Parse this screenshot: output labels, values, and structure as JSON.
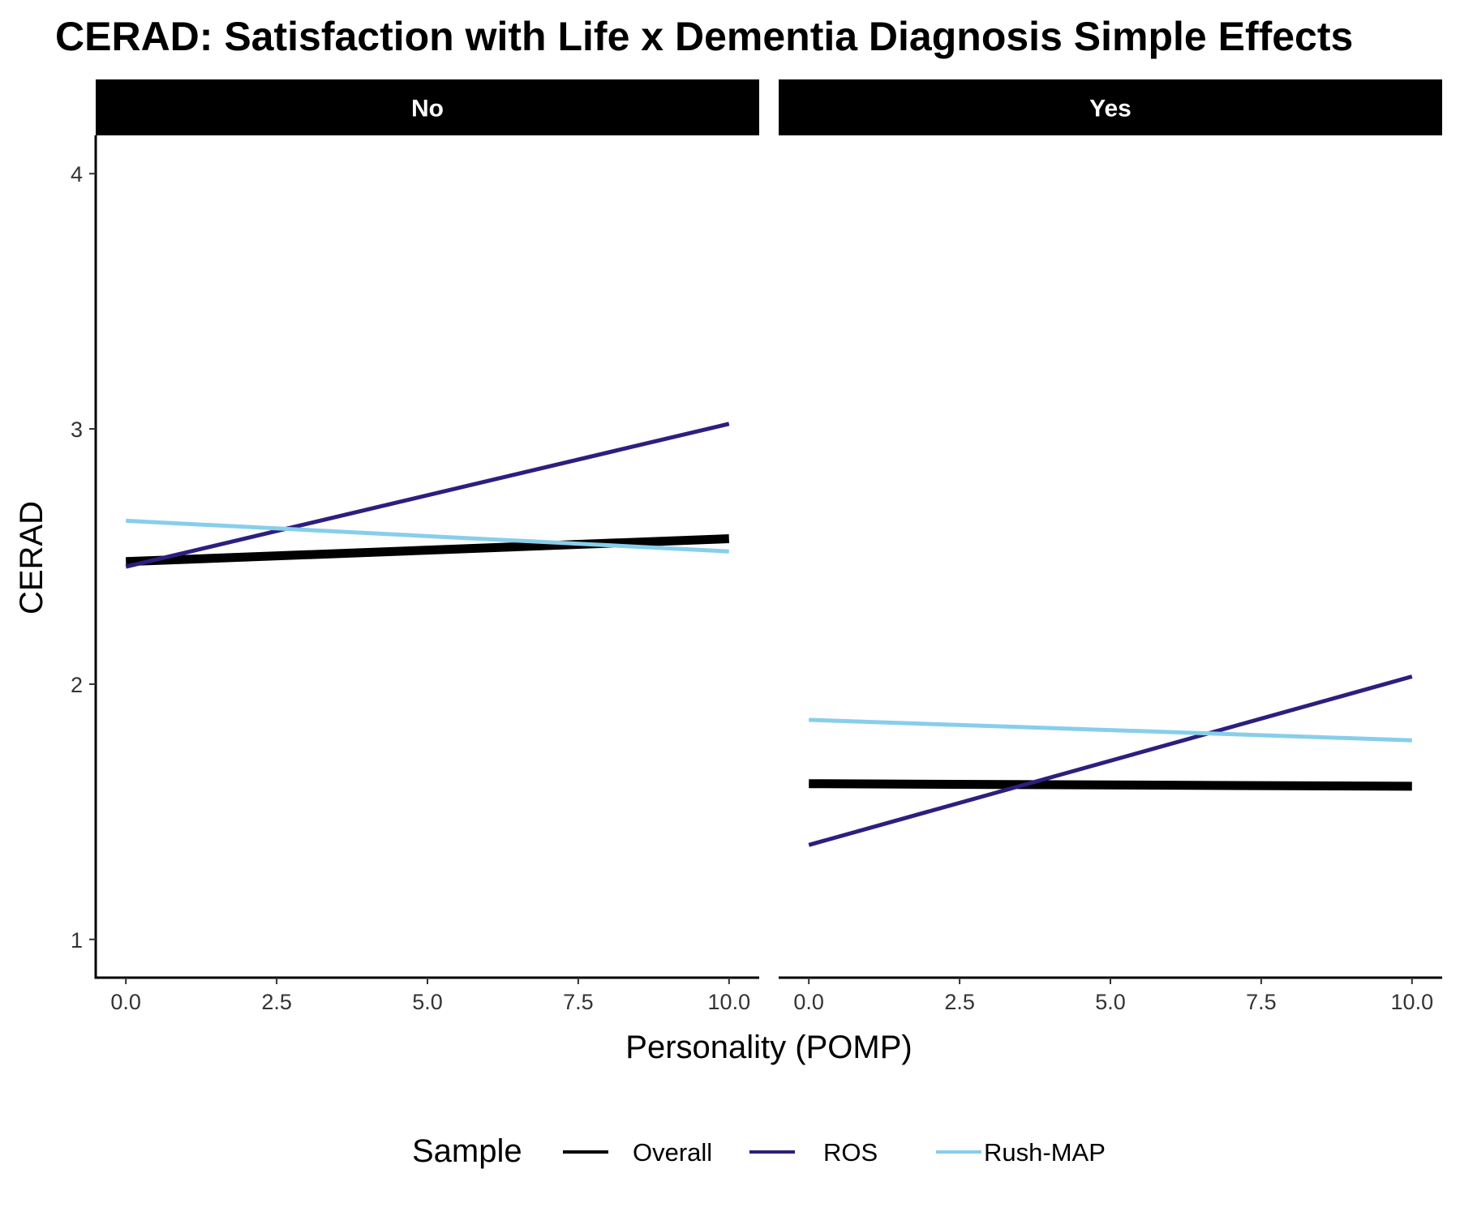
{
  "chart_data": {
    "type": "line",
    "title": "CERAD: Satisfaction with Life x Dementia Diagnosis Simple Effects",
    "xlabel": "Personality (POMP)",
    "ylabel": "CERAD",
    "xlim": [
      -0.5,
      10.5
    ],
    "ylim": [
      0.85,
      4.15
    ],
    "x_ticks": [
      0,
      2.5,
      5,
      7.5,
      10
    ],
    "x_tick_labels": [
      "0.0",
      "2.5",
      "5.0",
      "7.5",
      "10.0"
    ],
    "y_ticks": [
      1,
      2,
      3,
      4
    ],
    "y_tick_labels": [
      "1",
      "2",
      "3",
      "4"
    ],
    "grid": false,
    "legend": {
      "title": "Sample",
      "position": "bottom",
      "entries": [
        "Overall",
        "ROS",
        "Rush-MAP"
      ]
    },
    "colors": {
      "Overall": "#000000",
      "ROS": "#2c1f7e",
      "Rush-MAP": "#87ceeb"
    },
    "panels": [
      {
        "label": "No",
        "series": [
          {
            "name": "Overall",
            "x": [
              0,
              10
            ],
            "y": [
              2.48,
              2.57
            ]
          },
          {
            "name": "ROS",
            "x": [
              0,
              10
            ],
            "y": [
              2.46,
              3.02
            ]
          },
          {
            "name": "Rush-MAP",
            "x": [
              0,
              10
            ],
            "y": [
              2.64,
              2.52
            ]
          }
        ]
      },
      {
        "label": "Yes",
        "series": [
          {
            "name": "Overall",
            "x": [
              0,
              10
            ],
            "y": [
              1.61,
              1.6
            ]
          },
          {
            "name": "ROS",
            "x": [
              0,
              10
            ],
            "y": [
              1.37,
              2.03
            ]
          },
          {
            "name": "Rush-MAP",
            "x": [
              0,
              10
            ],
            "y": [
              1.86,
              1.78
            ]
          }
        ]
      }
    ]
  }
}
